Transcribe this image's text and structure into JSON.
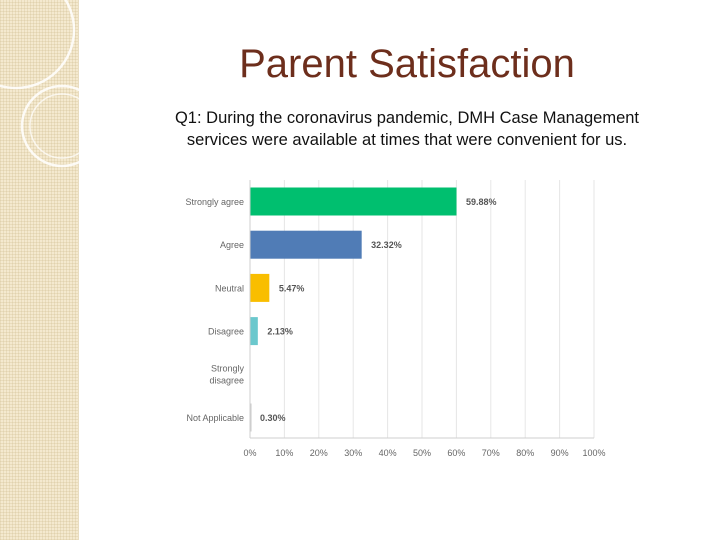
{
  "page": {
    "title": "Parent Satisfaction",
    "subtitle": "Q1: During the coronavirus pandemic, DMH Case Management services were available at times that were convenient for us."
  },
  "chart_data": {
    "type": "bar",
    "orientation": "horizontal",
    "categories": [
      "Strongly agree",
      "Agree",
      "Neutral",
      "Disagree",
      "Strongly disagree",
      "Not Applicable"
    ],
    "values": [
      59.88,
      32.32,
      5.47,
      2.13,
      0,
      0.3
    ],
    "value_labels": [
      "59.88%",
      "32.32%",
      "5.47%",
      "2.13%",
      "",
      "0.30%"
    ],
    "colors": [
      "#00bf6f",
      "#507cb6",
      "#f9be00",
      "#6bc8cd",
      "#cccccc",
      "#cccccc"
    ],
    "x_ticks": [
      "0%",
      "10%",
      "20%",
      "30%",
      "40%",
      "50%",
      "60%",
      "70%",
      "80%",
      "90%",
      "100%"
    ],
    "xlim": [
      0,
      100
    ],
    "grid": true,
    "legend": "none"
  }
}
